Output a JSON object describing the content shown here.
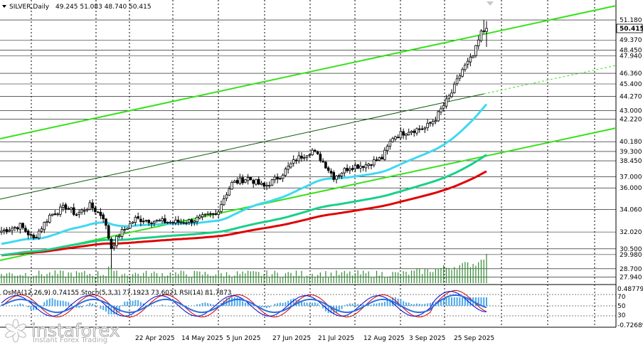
{
  "header": {
    "symbol": "SILVER",
    "timeframe": "Daily",
    "ohlc": "49.245 51.083 48.740 50.415"
  },
  "watermark": {
    "brand": "instaforex",
    "tagline": "Instant Forex Trading"
  },
  "colors": {
    "bull": "#ffffff",
    "bear": "#000000",
    "ema_red": "#e00000",
    "ema_green": "#18d08a",
    "ema_cyan": "#3fd8f0",
    "channel": "#36e21a",
    "grid": "#000000",
    "volume": "#2e8b2e",
    "osma": "#4aa8e8",
    "stoch_main": "#0000cc",
    "stoch_signal": "#d00000",
    "rsi": "#2b6fe0"
  },
  "indicator_header": "OsMA(12,26,9) 0.74155  Stoch(5,3,3) 77.1923 73.6021  RSI(14) 81.7873",
  "chart_data": {
    "type": "candlestick",
    "title": "SILVER, Daily",
    "x_ticks": [
      "22 Apr 2025",
      "14 May 2025",
      "5 Jun 2025",
      "27 Jun 2025",
      "21 Jul 2025",
      "12 Aug 2025",
      "3 Sep 2025",
      "25 Sep 2025"
    ],
    "y_ticks": [
      "51.180",
      "49.370",
      "48.450",
      "47.940",
      "46.360",
      "45.400",
      "44.270",
      "43.000",
      "42.220",
      "40.180",
      "39.300",
      "38.450",
      "37.000",
      "36.000",
      "34.060",
      "32.020",
      "30.500",
      "29.980",
      "28.700",
      "27.940"
    ],
    "current_price": "50.415",
    "ylim": [
      27.4,
      52.6
    ],
    "indicator_ticks": [
      "0.487797",
      "70",
      "50",
      "30",
      "-0.726895"
    ],
    "price_anchors": [
      [
        0,
        32.1
      ],
      [
        7,
        32.6
      ],
      [
        12,
        31.4
      ],
      [
        18,
        33.5
      ],
      [
        24,
        34.3
      ],
      [
        28,
        33.6
      ],
      [
        33,
        34.4
      ],
      [
        38,
        33.4
      ],
      [
        41,
        30.6
      ],
      [
        44,
        31.8
      ],
      [
        50,
        33.2
      ],
      [
        58,
        33.0
      ],
      [
        64,
        32.9
      ],
      [
        70,
        33.0
      ],
      [
        76,
        33.4
      ],
      [
        80,
        33.6
      ],
      [
        83,
        35.1
      ],
      [
        86,
        36.4
      ],
      [
        92,
        36.9
      ],
      [
        98,
        36.1
      ],
      [
        104,
        37.1
      ],
      [
        110,
        38.6
      ],
      [
        116,
        39.4
      ],
      [
        120,
        38.4
      ],
      [
        124,
        37.0
      ],
      [
        130,
        37.9
      ],
      [
        136,
        38.1
      ],
      [
        142,
        38.7
      ],
      [
        146,
        40.6
      ],
      [
        152,
        41.2
      ],
      [
        158,
        41.4
      ],
      [
        162,
        42.3
      ],
      [
        168,
        44.6
      ],
      [
        172,
        46.7
      ],
      [
        176,
        47.9
      ],
      [
        179,
        50.0
      ],
      [
        181,
        50.4
      ]
    ]
  }
}
